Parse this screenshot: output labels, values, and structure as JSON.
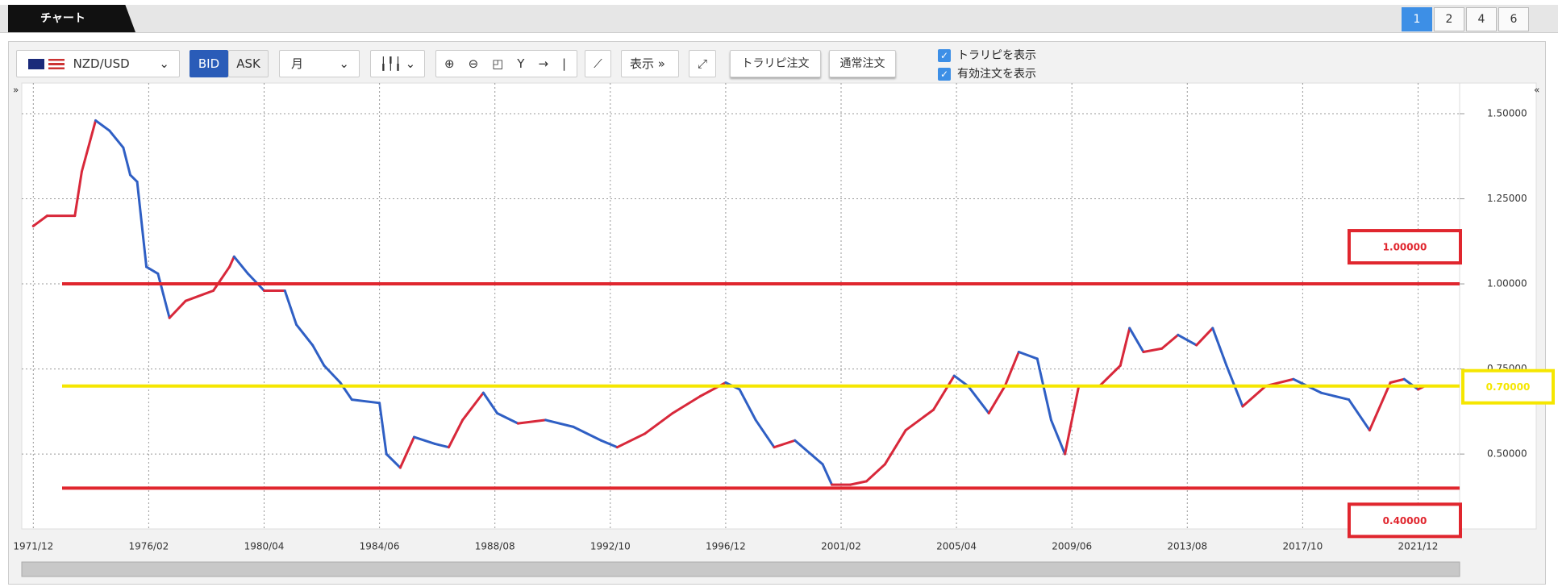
{
  "tab": {
    "title": "チャート"
  },
  "pages": [
    "1",
    "2",
    "4",
    "6"
  ],
  "toolbar": {
    "symbol": "NZD/USD",
    "bid": "BID",
    "ask": "ASK",
    "period": "月",
    "display": "表示",
    "buttons": [
      "トラリピ注文",
      "通常注文"
    ],
    "checkboxes": [
      "トラリピを表示",
      "有効注文を表示"
    ]
  },
  "chart_data": {
    "type": "line",
    "up_color": "#d8283a",
    "down_color": "#2f5fc4",
    "x": [
      "1971/12",
      "1972/06",
      "1973/06",
      "1973/09",
      "1974/03",
      "1974/09",
      "1975/03",
      "1975/06",
      "1975/09",
      "1976/01",
      "1976/06",
      "1976/11",
      "1977/06",
      "1978/06",
      "1979/01",
      "1979/03",
      "1979/09",
      "1980/04",
      "1981/01",
      "1981/06",
      "1982/01",
      "1982/06",
      "1983/01",
      "1983/06",
      "1984/06",
      "1984/09",
      "1985/03",
      "1985/09",
      "1986/06",
      "1986/12",
      "1987/06",
      "1988/03",
      "1988/09",
      "1989/06",
      "1990/06",
      "1991/06",
      "1992/06",
      "1993/01",
      "1994/01",
      "1995/01",
      "1996/01",
      "1996/12",
      "1997/06",
      "1998/01",
      "1998/09",
      "1999/06",
      "2000/06",
      "2000/10",
      "2001/06",
      "2002/01",
      "2002/09",
      "2003/06",
      "2004/06",
      "2005/03",
      "2005/09",
      "2006/06",
      "2007/01",
      "2007/07",
      "2008/03",
      "2008/09",
      "2009/03",
      "2009/09",
      "2010/06",
      "2011/03",
      "2011/07",
      "2012/01",
      "2012/09",
      "2013/04",
      "2013/12",
      "2014/07",
      "2015/01",
      "2015/08",
      "2016/06",
      "2017/06",
      "2018/06",
      "2019/06",
      "2020/03",
      "2020/12",
      "2021/06",
      "2021/12",
      "2022/03"
    ],
    "values": [
      1.17,
      1.2,
      1.2,
      1.33,
      1.48,
      1.45,
      1.4,
      1.32,
      1.3,
      1.05,
      1.03,
      0.9,
      0.95,
      0.98,
      1.05,
      1.08,
      1.03,
      0.98,
      0.98,
      0.88,
      0.82,
      0.76,
      0.71,
      0.66,
      0.65,
      0.5,
      0.46,
      0.55,
      0.53,
      0.52,
      0.6,
      0.68,
      0.62,
      0.59,
      0.6,
      0.58,
      0.54,
      0.52,
      0.56,
      0.62,
      0.67,
      0.71,
      0.69,
      0.6,
      0.52,
      0.54,
      0.47,
      0.41,
      0.41,
      0.42,
      0.47,
      0.57,
      0.63,
      0.73,
      0.7,
      0.62,
      0.7,
      0.8,
      0.78,
      0.6,
      0.5,
      0.7,
      0.7,
      0.76,
      0.87,
      0.8,
      0.81,
      0.85,
      0.82,
      0.87,
      0.76,
      0.64,
      0.7,
      0.72,
      0.68,
      0.66,
      0.57,
      0.71,
      0.72,
      0.69,
      0.7
    ],
    "xlim": [
      "1971/07",
      "2023/06"
    ],
    "xticks": [
      "1971/12",
      "1976/02",
      "1980/04",
      "1984/06",
      "1988/08",
      "1992/10",
      "1996/12",
      "2001/02",
      "2005/04",
      "2009/06",
      "2013/08",
      "2017/10",
      "2021/12"
    ],
    "ylim": [
      0.28,
      1.59
    ],
    "yticks": [
      {
        "value": 0.5,
        "label": "0.50000"
      },
      {
        "value": 0.75,
        "label": "0.75000"
      },
      {
        "value": 1.0,
        "label": "1.00000"
      },
      {
        "value": 1.25,
        "label": "1.25000"
      },
      {
        "value": 1.5,
        "label": "1.50000"
      }
    ],
    "grid": true,
    "levels": [
      {
        "value": 1.0,
        "label": "1.00000",
        "color": "#e0262e"
      },
      {
        "value": 0.7,
        "label": "0.70000",
        "color": "#f5e600"
      },
      {
        "value": 0.4,
        "label": "0.40000",
        "color": "#e0262e"
      }
    ]
  }
}
